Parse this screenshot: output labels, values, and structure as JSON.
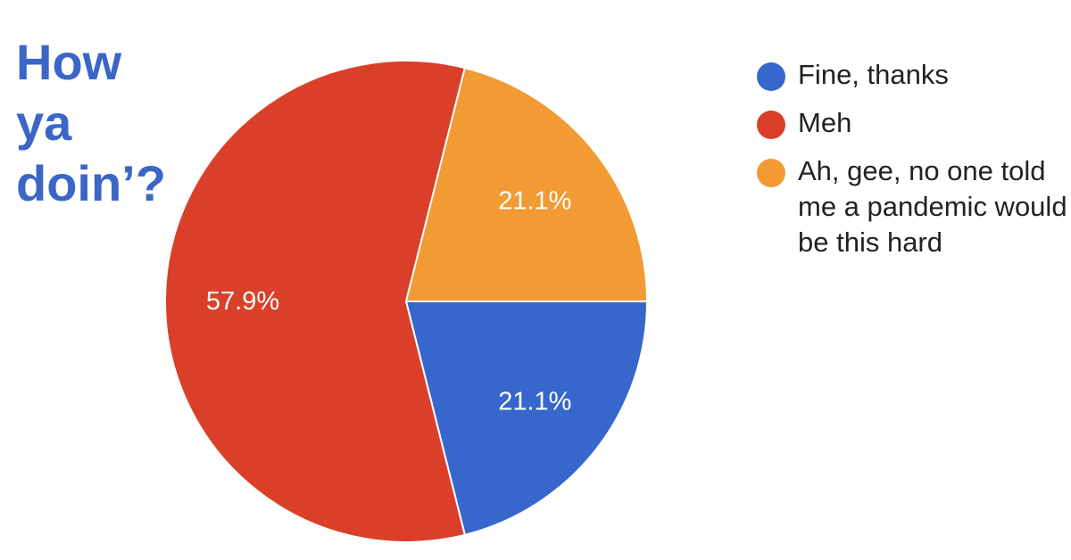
{
  "title_lines": [
    "How",
    "ya",
    "doin’?"
  ],
  "colors": {
    "title": "#3b66c7",
    "slice_border": "#ffffff",
    "label_text": "#ffffff"
  },
  "chart_data": {
    "type": "pie",
    "title": "How ya doin’?",
    "legend_position": "right",
    "slices": [
      {
        "label": "Fine, thanks",
        "value": 21.1,
        "value_label": "21.1%",
        "color": "#3766cc"
      },
      {
        "label": "Meh",
        "value": 57.9,
        "value_label": "57.9%",
        "color": "#da4029"
      },
      {
        "label": "Ah, gee, no one told me a pandemic would be this hard",
        "value": 21.1,
        "value_label": "21.1%",
        "color": "#f29a33"
      }
    ]
  }
}
